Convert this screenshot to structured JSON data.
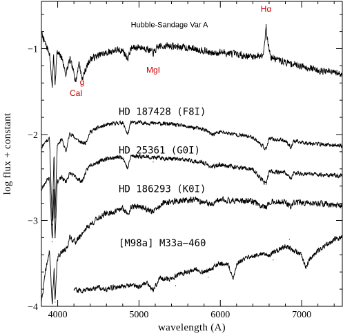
{
  "chart_data": {
    "type": "line",
    "xlabel": "wavelength (A)",
    "ylabel": "log flux + constant",
    "xlim": [
      3800,
      7500
    ],
    "ylim": [
      -4.0,
      -0.45
    ],
    "x_ticks": [
      4000,
      5000,
      6000,
      7000
    ],
    "y_ticks": [
      -1,
      -2,
      -3,
      -4
    ],
    "x_tick_labels": [
      "4000",
      "5000",
      "6000",
      "7000"
    ],
    "y_tick_labels": [
      "−1",
      "−2",
      "−3",
      "−4"
    ],
    "line_color": "#000000",
    "annotation_color": "#cc0000",
    "series": [
      {
        "name": "Hubble-Sandage Var A",
        "x_range": [
          3800,
          7500
        ],
        "points": [
          [
            3800,
            -0.82
          ],
          [
            3850,
            -0.95
          ],
          [
            3900,
            -1.05
          ],
          [
            3933,
            -1.45
          ],
          [
            3950,
            -1.08
          ],
          [
            3968,
            -1.4
          ],
          [
            3990,
            -1.05
          ],
          [
            4050,
            -1.1
          ],
          [
            4101,
            -1.3
          ],
          [
            4150,
            -1.12
          ],
          [
            4227,
            -1.38
          ],
          [
            4260,
            -1.15
          ],
          [
            4300,
            -1.35
          ],
          [
            4340,
            -1.25
          ],
          [
            4400,
            -1.12
          ],
          [
            4500,
            -1.08
          ],
          [
            4600,
            -1.05
          ],
          [
            4700,
            -1.02
          ],
          [
            4800,
            -1.02
          ],
          [
            4861,
            -1.12
          ],
          [
            4900,
            -1.0
          ],
          [
            5000,
            -0.98
          ],
          [
            5100,
            -1.0
          ],
          [
            5175,
            -1.05
          ],
          [
            5250,
            -0.97
          ],
          [
            5400,
            -0.97
          ],
          [
            5600,
            -0.99
          ],
          [
            5800,
            -1.02
          ],
          [
            5893,
            -1.06
          ],
          [
            6000,
            -1.04
          ],
          [
            6200,
            -1.07
          ],
          [
            6400,
            -1.09
          ],
          [
            6520,
            -1.08
          ],
          [
            6550,
            -0.88
          ],
          [
            6563,
            -0.72
          ],
          [
            6580,
            -0.9
          ],
          [
            6620,
            -1.1
          ],
          [
            6800,
            -1.16
          ],
          [
            7000,
            -1.2
          ],
          [
            7200,
            -1.25
          ],
          [
            7400,
            -1.28
          ],
          [
            7500,
            -1.3
          ]
        ],
        "lines": [
          [
            3933,
            -1.45
          ],
          [
            3968,
            -1.4
          ],
          [
            4101,
            -1.3
          ],
          [
            4227,
            -1.38
          ],
          [
            4300,
            -1.35
          ],
          [
            4861,
            -1.12
          ],
          [
            5175,
            -1.05
          ],
          [
            5893,
            -1.06
          ]
        ],
        "emission": [
          [
            6563,
            -0.72
          ]
        ],
        "noise": 0.035,
        "seed": 7
      },
      {
        "name": "HD 187428 (F8I)",
        "x_range": [
          3800,
          7500
        ],
        "points": [
          [
            3800,
            -2.15
          ],
          [
            3850,
            -2.08
          ],
          [
            3900,
            -2.05
          ],
          [
            3933,
            -3.05
          ],
          [
            3955,
            -2.2
          ],
          [
            3968,
            -2.95
          ],
          [
            3995,
            -2.12
          ],
          [
            4050,
            -2.05
          ],
          [
            4101,
            -2.2
          ],
          [
            4150,
            -1.98
          ],
          [
            4227,
            -2.05
          ],
          [
            4300,
            -2.1
          ],
          [
            4340,
            -2.1
          ],
          [
            4400,
            -1.97
          ],
          [
            4500,
            -1.92
          ],
          [
            4600,
            -1.89
          ],
          [
            4700,
            -1.87
          ],
          [
            4800,
            -1.86
          ],
          [
            4861,
            -2.0
          ],
          [
            4900,
            -1.86
          ],
          [
            5000,
            -1.86
          ],
          [
            5200,
            -1.87
          ],
          [
            5400,
            -1.88
          ],
          [
            5600,
            -1.91
          ],
          [
            5800,
            -1.94
          ],
          [
            5893,
            -2.0
          ],
          [
            6000,
            -1.97
          ],
          [
            6200,
            -2.0
          ],
          [
            6400,
            -2.03
          ],
          [
            6563,
            -2.17
          ],
          [
            6600,
            -2.05
          ],
          [
            6800,
            -2.07
          ],
          [
            6870,
            -2.15
          ],
          [
            6900,
            -2.08
          ],
          [
            7100,
            -2.1
          ],
          [
            7300,
            -2.12
          ],
          [
            7500,
            -2.13
          ]
        ],
        "lines": [
          [
            3933,
            -3.05
          ],
          [
            3968,
            -2.95
          ],
          [
            4101,
            -2.2
          ],
          [
            4340,
            -2.1
          ],
          [
            4861,
            -2.0
          ],
          [
            5893,
            -2.0
          ],
          [
            6563,
            -2.17
          ],
          [
            6870,
            -2.15
          ]
        ],
        "emission": [],
        "noise": 0.02,
        "seed": 11
      },
      {
        "name": "HD 25361 (G0I)",
        "x_range": [
          3800,
          7500
        ],
        "points": [
          [
            3800,
            -2.65
          ],
          [
            3850,
            -2.55
          ],
          [
            3900,
            -2.5
          ],
          [
            3933,
            -3.25
          ],
          [
            3955,
            -2.6
          ],
          [
            3968,
            -3.2
          ],
          [
            3995,
            -2.55
          ],
          [
            4050,
            -2.5
          ],
          [
            4101,
            -2.55
          ],
          [
            4150,
            -2.45
          ],
          [
            4227,
            -2.5
          ],
          [
            4300,
            -2.55
          ],
          [
            4340,
            -2.45
          ],
          [
            4400,
            -2.35
          ],
          [
            4500,
            -2.32
          ],
          [
            4600,
            -2.28
          ],
          [
            4700,
            -2.27
          ],
          [
            4800,
            -2.26
          ],
          [
            4861,
            -2.4
          ],
          [
            4900,
            -2.25
          ],
          [
            5000,
            -2.25
          ],
          [
            5200,
            -2.27
          ],
          [
            5400,
            -2.28
          ],
          [
            5600,
            -2.3
          ],
          [
            5800,
            -2.33
          ],
          [
            5893,
            -2.38
          ],
          [
            6000,
            -2.35
          ],
          [
            6200,
            -2.38
          ],
          [
            6400,
            -2.41
          ],
          [
            6563,
            -2.58
          ],
          [
            6600,
            -2.43
          ],
          [
            6800,
            -2.44
          ],
          [
            6870,
            -2.52
          ],
          [
            6900,
            -2.45
          ],
          [
            7100,
            -2.46
          ],
          [
            7300,
            -2.47
          ],
          [
            7450,
            -2.48
          ]
        ],
        "lines": [
          [
            3933,
            -3.25
          ],
          [
            3968,
            -3.2
          ],
          [
            4227,
            -2.5
          ],
          [
            4340,
            -2.45
          ],
          [
            4861,
            -2.4
          ],
          [
            5175,
            -2.32
          ],
          [
            5893,
            -2.38
          ],
          [
            6563,
            -2.58
          ],
          [
            6870,
            -2.52
          ]
        ],
        "emission": [],
        "noise": 0.022,
        "seed": 23
      },
      {
        "name": "HD 186293 (K0I)",
        "x_range": [
          3800,
          7500
        ],
        "points": [
          [
            3800,
            -3.95
          ],
          [
            3850,
            -3.6
          ],
          [
            3900,
            -3.35
          ],
          [
            3933,
            -4.0
          ],
          [
            3955,
            -3.55
          ],
          [
            3968,
            -3.95
          ],
          [
            3995,
            -3.45
          ],
          [
            4050,
            -3.35
          ],
          [
            4101,
            -3.35
          ],
          [
            4150,
            -3.2
          ],
          [
            4227,
            -3.25
          ],
          [
            4300,
            -3.15
          ],
          [
            4340,
            -3.1
          ],
          [
            4400,
            -3.05
          ],
          [
            4500,
            -2.97
          ],
          [
            4600,
            -2.92
          ],
          [
            4700,
            -2.9
          ],
          [
            4800,
            -2.86
          ],
          [
            4861,
            -2.92
          ],
          [
            4900,
            -2.85
          ],
          [
            5000,
            -2.83
          ],
          [
            5175,
            -2.9
          ],
          [
            5300,
            -2.8
          ],
          [
            5500,
            -2.77
          ],
          [
            5700,
            -2.76
          ],
          [
            5893,
            -2.82
          ],
          [
            6000,
            -2.76
          ],
          [
            6200,
            -2.77
          ],
          [
            6400,
            -2.78
          ],
          [
            6563,
            -2.85
          ],
          [
            6600,
            -2.78
          ],
          [
            6800,
            -2.79
          ],
          [
            6870,
            -2.85
          ],
          [
            6900,
            -2.79
          ],
          [
            7100,
            -2.8
          ],
          [
            7300,
            -2.81
          ],
          [
            7450,
            -2.82
          ]
        ],
        "lines": [
          [
            3933,
            -4.0
          ],
          [
            3968,
            -3.95
          ],
          [
            4227,
            -3.25
          ],
          [
            4300,
            -3.15
          ],
          [
            5175,
            -2.9
          ],
          [
            5893,
            -2.82
          ],
          [
            6563,
            -2.85
          ],
          [
            6870,
            -2.85
          ]
        ],
        "emission": [],
        "noise": 0.03,
        "seed": 41
      },
      {
        "name": "[M98a] M33a-460",
        "x_range": [
          4200,
          7500
        ],
        "points": [
          [
            4200,
            -3.8
          ],
          [
            4300,
            -3.82
          ],
          [
            4400,
            -3.8
          ],
          [
            4500,
            -3.78
          ],
          [
            4600,
            -3.8
          ],
          [
            4700,
            -3.78
          ],
          [
            4800,
            -3.76
          ],
          [
            4900,
            -3.75
          ],
          [
            5000,
            -3.77
          ],
          [
            5100,
            -3.72
          ],
          [
            5175,
            -3.82
          ],
          [
            5250,
            -3.67
          ],
          [
            5400,
            -3.68
          ],
          [
            5500,
            -3.62
          ],
          [
            5600,
            -3.6
          ],
          [
            5700,
            -3.57
          ],
          [
            5800,
            -3.6
          ],
          [
            5900,
            -3.55
          ],
          [
            6000,
            -3.5
          ],
          [
            6100,
            -3.52
          ],
          [
            6159,
            -3.68
          ],
          [
            6200,
            -3.5
          ],
          [
            6300,
            -3.45
          ],
          [
            6400,
            -3.42
          ],
          [
            6500,
            -3.38
          ],
          [
            6600,
            -3.4
          ],
          [
            6700,
            -3.35
          ],
          [
            6800,
            -3.3
          ],
          [
            6900,
            -3.35
          ],
          [
            7000,
            -3.4
          ],
          [
            7054,
            -3.55
          ],
          [
            7100,
            -3.45
          ],
          [
            7200,
            -3.35
          ],
          [
            7300,
            -3.28
          ],
          [
            7400,
            -3.22
          ],
          [
            7500,
            -3.2
          ]
        ],
        "lines": [
          [
            5175,
            -3.82
          ],
          [
            5450,
            -3.76
          ],
          [
            5850,
            -3.66
          ],
          [
            6159,
            -3.68
          ],
          [
            6650,
            -3.46
          ],
          [
            7054,
            -3.55
          ]
        ],
        "emission": [
          [
            6850,
            -3.22
          ]
        ],
        "noise": 0.025,
        "seed": 59
      }
    ],
    "annotations": [
      {
        "text": "Hα",
        "x": 6563,
        "y": -0.57,
        "color": "#cc0000"
      },
      {
        "text": "MgI",
        "x": 5175,
        "y": -1.28,
        "color": "#cc0000"
      },
      {
        "text": "g",
        "x": 4300,
        "y": -1.42,
        "color": "#cc0000"
      },
      {
        "text": "CaI",
        "x": 4227,
        "y": -1.55,
        "color": "#cc0000"
      }
    ],
    "labels": [
      {
        "text": "Hubble-Sandage Var A",
        "x": 4900,
        "y": -0.75,
        "style": "sans"
      },
      {
        "text": "HD 187428 (F8I)",
        "x": 4750,
        "y": -1.77,
        "style": "mono"
      },
      {
        "text": "HD 25361 (G0I)",
        "x": 4750,
        "y": -2.22,
        "style": "mono"
      },
      {
        "text": "HD 186293 (K0I)",
        "x": 4750,
        "y": -2.67,
        "style": "mono"
      },
      {
        "text": "[M98a] M33a−460",
        "x": 4750,
        "y": -3.3,
        "style": "mono"
      }
    ]
  }
}
